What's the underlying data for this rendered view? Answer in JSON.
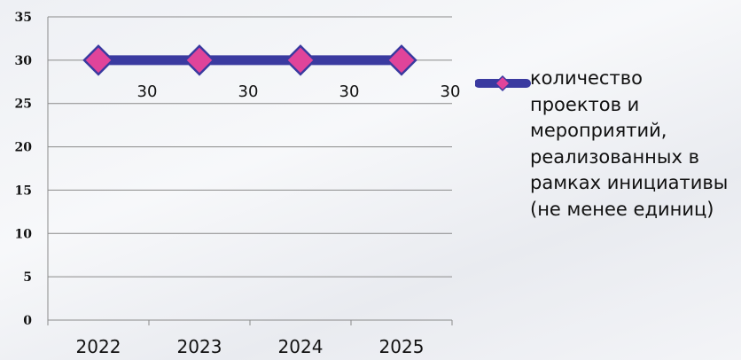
{
  "chart_data": {
    "type": "line",
    "title": "",
    "xlabel": "",
    "ylabel": "",
    "categories": [
      "2022",
      "2023",
      "2024",
      "2025"
    ],
    "yticks": [
      "0",
      "5",
      "10",
      "15",
      "20",
      "25",
      "30",
      "35"
    ],
    "ylim": [
      0,
      35
    ],
    "grid": true,
    "legend_position": "right",
    "series": [
      {
        "name": "количество проектов и мероприятий, реализованных в рамках инициативы (не менее единиц)",
        "values": [
          30,
          30,
          30,
          30
        ],
        "data_labels": [
          "30",
          "30",
          "30",
          "30"
        ],
        "line_color": "#3a3aa0",
        "marker_color": "#e0449a",
        "marker": "diamond"
      }
    ]
  }
}
